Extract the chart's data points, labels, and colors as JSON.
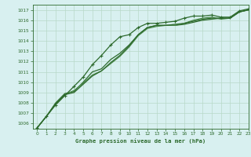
{
  "title": "Graphe pression niveau de la mer (hPa)",
  "bg_color": "#d8f0f0",
  "grid_color": "#b8d8c8",
  "line_color_dark": "#2d6a2d",
  "line_color_mid": "#4a8a4a",
  "xlim": [
    -0.5,
    23
  ],
  "ylim": [
    1005.5,
    1017.5
  ],
  "yticks": [
    1006,
    1007,
    1008,
    1009,
    1010,
    1011,
    1012,
    1013,
    1014,
    1015,
    1016,
    1017
  ],
  "xticks": [
    0,
    1,
    2,
    3,
    4,
    5,
    6,
    7,
    8,
    9,
    10,
    11,
    12,
    13,
    14,
    15,
    16,
    17,
    18,
    19,
    20,
    21,
    22,
    23
  ],
  "series_marked": [
    1005.6,
    1006.7,
    1007.8,
    1008.7,
    1009.6,
    1010.5,
    1011.7,
    1012.6,
    1013.6,
    1014.4,
    1014.6,
    1015.3,
    1015.7,
    1015.7,
    1015.8,
    1015.9,
    1016.2,
    1016.4,
    1016.4,
    1016.5,
    1016.3,
    1016.3,
    1016.9,
    1017.1
  ],
  "series_a": [
    1005.6,
    1006.7,
    1008.0,
    1008.9,
    1009.1,
    1010.0,
    1011.0,
    1011.3,
    1012.2,
    1012.8,
    1013.6,
    1014.6,
    1015.3,
    1015.5,
    1015.5,
    1015.5,
    1015.6,
    1015.8,
    1016.0,
    1016.1,
    1016.2,
    1016.2,
    1016.8,
    1017.0
  ],
  "series_b": [
    1005.6,
    1006.7,
    1007.9,
    1008.8,
    1009.2,
    1009.9,
    1010.7,
    1011.1,
    1011.8,
    1012.5,
    1013.4,
    1014.5,
    1015.2,
    1015.4,
    1015.5,
    1015.5,
    1015.7,
    1016.0,
    1016.2,
    1016.3,
    1016.1,
    1016.2,
    1016.8,
    1017.0
  ],
  "series_c": [
    1005.6,
    1006.7,
    1007.9,
    1008.8,
    1009.0,
    1009.8,
    1010.6,
    1011.1,
    1011.9,
    1012.6,
    1013.5,
    1014.6,
    1015.3,
    1015.5,
    1015.5,
    1015.6,
    1015.7,
    1015.9,
    1016.1,
    1016.2,
    1016.2,
    1016.2,
    1016.8,
    1017.0
  ]
}
